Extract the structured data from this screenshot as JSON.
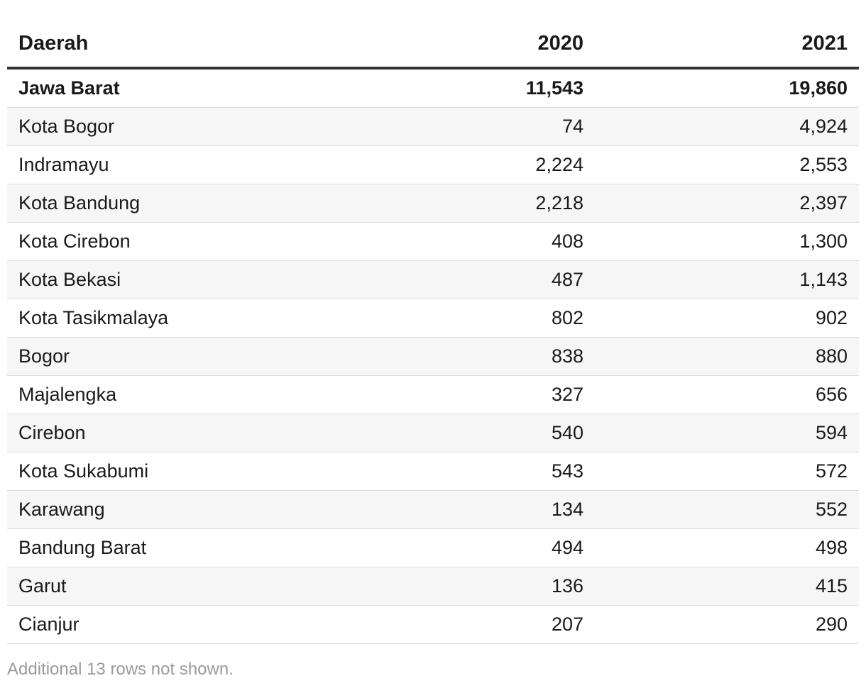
{
  "chart_data": {
    "type": "table",
    "columns": [
      "Daerah",
      "2020",
      "2021"
    ],
    "rows": [
      {
        "name": "Jawa Barat",
        "v2020": "11,543",
        "v2021": "19,860",
        "total": true
      },
      {
        "name": "Kota Bogor",
        "v2020": "74",
        "v2021": "4,924"
      },
      {
        "name": "Indramayu",
        "v2020": "2,224",
        "v2021": "2,553"
      },
      {
        "name": "Kota Bandung",
        "v2020": "2,218",
        "v2021": "2,397"
      },
      {
        "name": "Kota Cirebon",
        "v2020": "408",
        "v2021": "1,300"
      },
      {
        "name": "Kota Bekasi",
        "v2020": "487",
        "v2021": "1,143"
      },
      {
        "name": "Kota Tasikmalaya",
        "v2020": "802",
        "v2021": "902"
      },
      {
        "name": "Bogor",
        "v2020": "838",
        "v2021": "880"
      },
      {
        "name": "Majalengka",
        "v2020": "327",
        "v2021": "656"
      },
      {
        "name": "Cirebon",
        "v2020": "540",
        "v2021": "594"
      },
      {
        "name": "Kota Sukabumi",
        "v2020": "543",
        "v2021": "572"
      },
      {
        "name": "Karawang",
        "v2020": "134",
        "v2021": "552"
      },
      {
        "name": "Bandung Barat",
        "v2020": "494",
        "v2021": "498"
      },
      {
        "name": "Garut",
        "v2020": "136",
        "v2021": "415"
      },
      {
        "name": "Cianjur",
        "v2020": "207",
        "v2021": "290"
      }
    ],
    "footnote": "Additional 13 rows not shown."
  },
  "colors": {
    "header_rule": "#333333",
    "row_alt_bg": "#f6f6f6",
    "row_divider": "#dcdcdc",
    "footnote_text": "#9a9a9a"
  }
}
